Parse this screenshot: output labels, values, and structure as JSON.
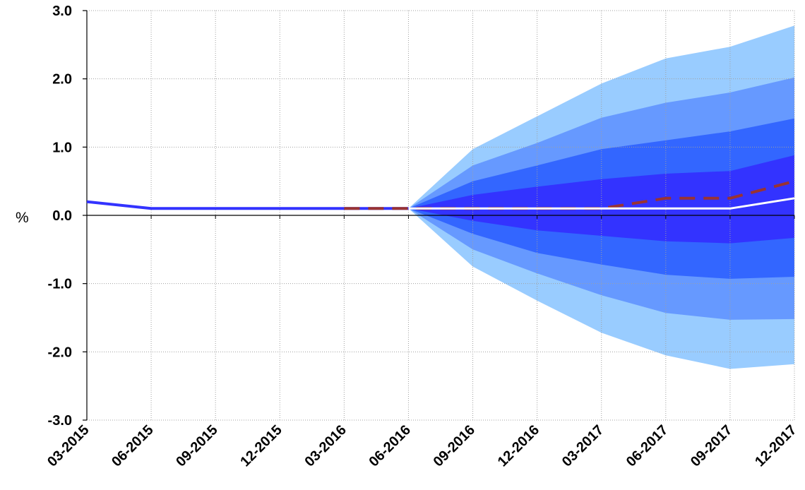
{
  "chart_data": {
    "type": "area",
    "title": "",
    "xlabel": "",
    "ylabel": "%",
    "ylim": [
      -3.0,
      3.0
    ],
    "y_ticks": [
      "3.0",
      "2.0",
      "1.0",
      "0.0",
      "-1.0",
      "-2.0",
      "-3.0"
    ],
    "y_tick_values": [
      3.0,
      2.0,
      1.0,
      0.0,
      -1.0,
      -2.0,
      -3.0
    ],
    "categories": [
      "03-2015",
      "06-2015",
      "09-2015",
      "12-2015",
      "03-2016",
      "06-2016",
      "09-2016",
      "12-2016",
      "03-2017",
      "06-2017",
      "09-2017",
      "12-2017"
    ],
    "grid": true,
    "fan_start_index": 5,
    "fan_bands": [
      {
        "color": "#99ccff",
        "upper": [
          0.1,
          0.97,
          1.45,
          1.93,
          2.3,
          2.47,
          2.78
        ],
        "lower": [
          0.1,
          -0.75,
          -1.25,
          -1.72,
          -2.05,
          -2.25,
          -2.18
        ]
      },
      {
        "color": "#6699ff",
        "upper": [
          0.1,
          0.73,
          1.06,
          1.43,
          1.65,
          1.8,
          2.02
        ],
        "lower": [
          0.1,
          -0.5,
          -0.85,
          -1.17,
          -1.43,
          -1.53,
          -1.52
        ]
      },
      {
        "color": "#3366ff",
        "upper": [
          0.1,
          0.5,
          0.73,
          0.97,
          1.1,
          1.23,
          1.42
        ],
        "lower": [
          0.1,
          -0.27,
          -0.55,
          -0.72,
          -0.87,
          -0.93,
          -0.9
        ]
      },
      {
        "color": "#3333ff",
        "upper": [
          0.1,
          0.3,
          0.42,
          0.53,
          0.61,
          0.65,
          0.88
        ],
        "lower": [
          0.1,
          -0.08,
          -0.22,
          -0.3,
          -0.38,
          -0.41,
          -0.33
        ]
      }
    ],
    "series": [
      {
        "style": "history",
        "color": "#3333ff",
        "values": [
          0.2,
          0.1,
          0.1,
          0.1,
          0.1,
          0.1,
          null,
          null,
          null,
          null,
          null,
          null
        ]
      },
      {
        "style": "dashed",
        "color": "#993333",
        "values": [
          null,
          null,
          null,
          null,
          0.1,
          0.1,
          0.1,
          0.1,
          0.1,
          0.25,
          0.25,
          0.5
        ]
      },
      {
        "style": "white",
        "color": "#ffffff",
        "values": [
          null,
          null,
          null,
          null,
          null,
          0.1,
          0.1,
          0.1,
          0.1,
          0.1,
          0.1,
          0.25
        ]
      }
    ]
  }
}
